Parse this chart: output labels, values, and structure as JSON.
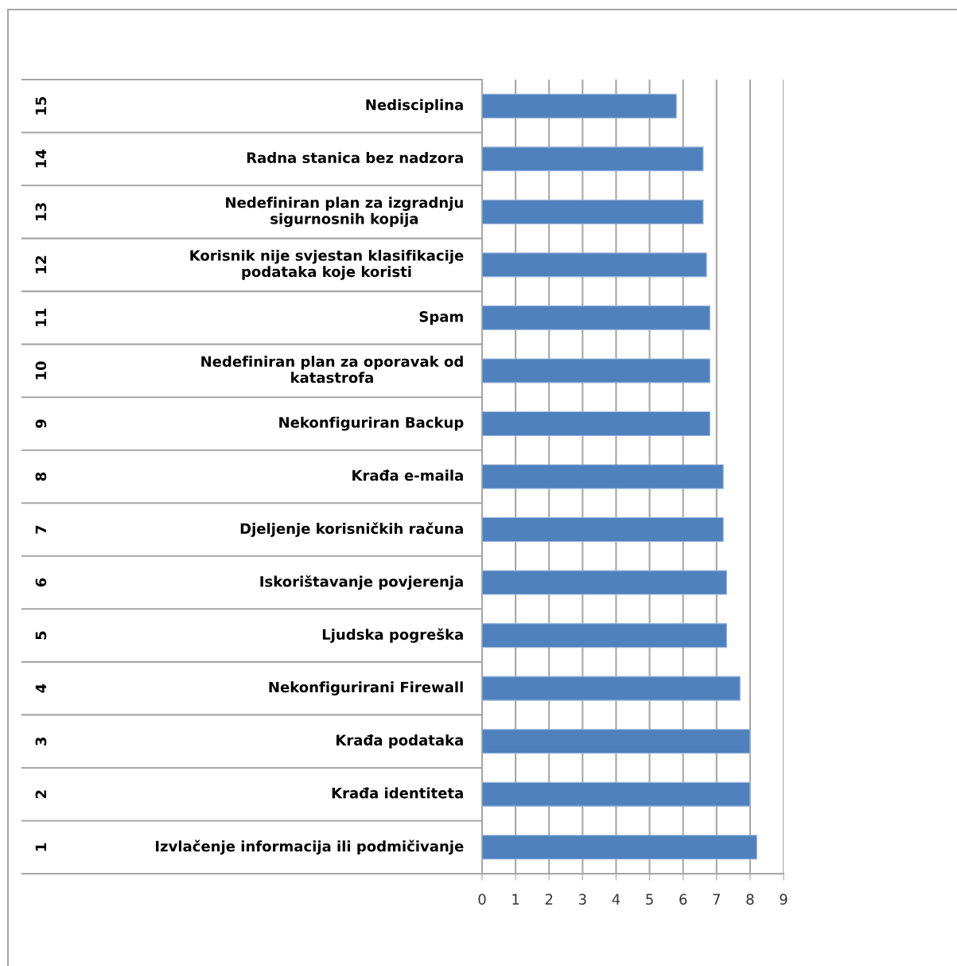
{
  "chart_data": {
    "type": "bar",
    "orientation": "horizontal",
    "categories": [
      "Nedisciplina",
      "Radna stanica bez nadzora",
      "Nedefiniran plan za izgradnju\nsigurnosnih kopija",
      "Korisnik nije svjestan klasifikacije\npodataka koje koristi",
      "Spam",
      "Nedefiniran plan za oporavak od\nkatastrofa",
      "Nekonfiguriran Backup",
      "Krađa e-maila",
      "Djeljenje korisničkih računa",
      "Iskorištavanje povjerenja",
      "Ljudska pogreška",
      "Nekonfigurirani Firewall",
      "Krađa podataka",
      "Krađa identiteta",
      "Izvlačenje informacija ili podmičivanje"
    ],
    "values": [
      5.8,
      6.6,
      6.6,
      6.7,
      6.8,
      6.8,
      6.8,
      7.2,
      7.2,
      7.3,
      7.3,
      7.7,
      8.0,
      8.0,
      8.2
    ],
    "color": "#4f81bd",
    "annotations": [
      "15",
      "14",
      "13",
      "12",
      "11",
      "10",
      "9",
      "8",
      "7",
      "6",
      "5",
      "4",
      "3",
      "2",
      "1"
    ],
    "xlim": [
      0,
      9
    ],
    "xticks": [
      0,
      1,
      2,
      3,
      4,
      5,
      6,
      7,
      8,
      9
    ],
    "grid": "x",
    "legend": false
  }
}
